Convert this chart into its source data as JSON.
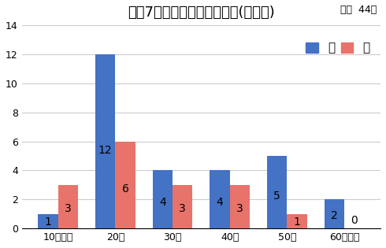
{
  "title": "令和7年　年代別梅毒報告数(速報値)",
  "total_label": "合計  44人",
  "categories": [
    "10代以下",
    "20代",
    "30代",
    "40代",
    "50代",
    "60代以上"
  ],
  "male_values": [
    1,
    12,
    4,
    4,
    5,
    2
  ],
  "female_values": [
    3,
    6,
    3,
    3,
    1,
    0
  ],
  "male_color": "#4472C4",
  "female_color": "#E8736B",
  "male_label": "男",
  "female_label": "女",
  "ylim": [
    0,
    14
  ],
  "yticks": [
    0,
    2,
    4,
    6,
    8,
    10,
    12,
    14
  ],
  "background_color": "#FFFFFF",
  "grid_color": "#CCCCCC",
  "bar_width": 0.35
}
